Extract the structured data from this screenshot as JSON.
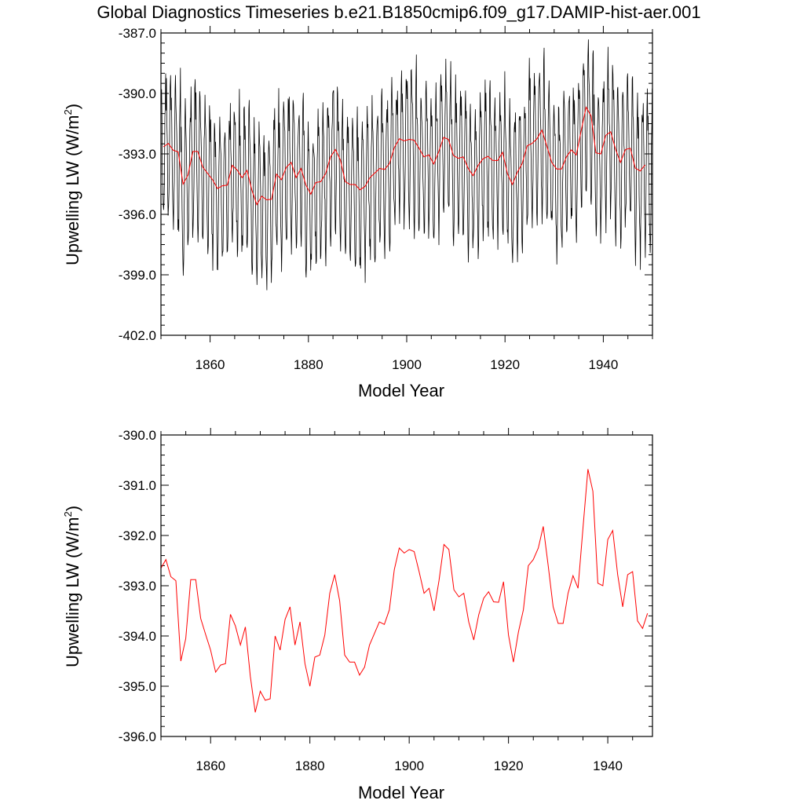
{
  "figure": {
    "title": "Global Diagnostics Timeseries b.e21.B1850cmip6.f09_g17.DAMIP-hist-aer.001"
  },
  "chart_data": [
    {
      "type": "line",
      "title": "Global Diagnostics Timeseries b.e21.B1850cmip6.f09_g17.DAMIP-hist-aer.001",
      "xlabel": "Model Year",
      "ylabel": "Upwelling LW (W/m²)",
      "ylabel_main": "Upwelling LW (W/m",
      "ylabel_sup": "2",
      "ylabel_close": ")",
      "xlim": [
        1850,
        1950
      ],
      "ylim": [
        -402,
        -387
      ],
      "xticks": [
        1860,
        1880,
        1900,
        1920,
        1940
      ],
      "xtick_labels": [
        "1860",
        "1880",
        "1900",
        "1920",
        "1940"
      ],
      "yticks": [
        -402,
        -399,
        -396,
        -393,
        -390,
        -387
      ],
      "ytick_labels": [
        "-402.0",
        "-399.0",
        "-396.0",
        "-393.0",
        "-390.0",
        "-387.0"
      ],
      "grid": false,
      "series": [
        {
          "role": "monthly",
          "color": "#000000",
          "description_of_cycle": "seasonal cycle, amplitude ~3.5 W/m2 around the annual mean",
          "monthly_anomaly": [
            2.0,
            2.3,
            1.0,
            -0.5,
            -2.0,
            -3.3,
            -3.8,
            -3.0,
            -1.2,
            0.8,
            2.5,
            3.3
          ],
          "x_start": 1850,
          "x_end": 1950
        },
        {
          "role": "annual-mean",
          "color": "#ff0000",
          "x_start": 1850.5,
          "values": []
        }
      ]
    },
    {
      "type": "line",
      "xlabel": "Model Year",
      "ylabel": "Upwelling LW (W/m²)",
      "ylabel_main": "Upwelling LW (W/m",
      "ylabel_sup": "2",
      "ylabel_close": ")",
      "xlim": [
        1850,
        1949
      ],
      "ylim": [
        -396,
        -390
      ],
      "xticks": [
        1860,
        1880,
        1900,
        1920,
        1940
      ],
      "xtick_labels": [
        "1860",
        "1880",
        "1900",
        "1920",
        "1940"
      ],
      "yticks": [
        -396,
        -395,
        -394,
        -393,
        -392,
        -391,
        -390
      ],
      "ytick_labels": [
        "-396.0",
        "-395.0",
        "-394.0",
        "-393.0",
        "-392.0",
        "-391.0",
        "-390.0"
      ],
      "grid": false,
      "series": [
        {
          "role": "annual-mean",
          "color": "#ff0000",
          "x_start": 1850,
          "values": [
            -392.65,
            -392.48,
            -392.82,
            -392.9,
            -394.5,
            -394.05,
            -392.88,
            -392.88,
            -393.65,
            -393.97,
            -394.28,
            -394.72,
            -394.58,
            -394.55,
            -393.57,
            -393.8,
            -394.18,
            -393.82,
            -394.8,
            -395.52,
            -395.1,
            -395.28,
            -395.25,
            -394.0,
            -394.28,
            -393.67,
            -393.42,
            -394.18,
            -393.72,
            -394.55,
            -395.0,
            -394.42,
            -394.38,
            -393.98,
            -393.15,
            -392.78,
            -393.3,
            -394.38,
            -394.52,
            -394.52,
            -394.78,
            -394.62,
            -394.18,
            -393.95,
            -393.72,
            -393.77,
            -393.48,
            -392.68,
            -392.25,
            -392.35,
            -392.28,
            -392.32,
            -392.72,
            -393.15,
            -393.05,
            -393.5,
            -392.9,
            -392.18,
            -392.28,
            -393.08,
            -393.22,
            -393.15,
            -393.72,
            -394.08,
            -393.58,
            -393.25,
            -393.12,
            -393.32,
            -393.33,
            -392.92,
            -393.98,
            -394.52,
            -393.92,
            -393.48,
            -392.6,
            -392.48,
            -392.25,
            -391.82,
            -392.6,
            -393.42,
            -393.75,
            -393.75,
            -393.15,
            -392.8,
            -393.05,
            -391.85,
            -390.68,
            -391.12,
            -392.95,
            -393.0,
            -392.08,
            -391.9,
            -392.78,
            -393.42,
            -392.78,
            -392.72,
            -393.7,
            -393.85,
            -393.55
          ]
        }
      ]
    }
  ]
}
